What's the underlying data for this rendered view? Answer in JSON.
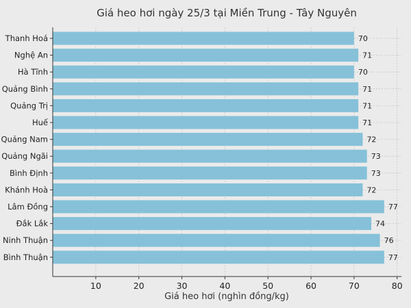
{
  "chart_data": {
    "type": "bar",
    "orientation": "horizontal",
    "title": "Giá heo hơi ngày 25/3 tại Miền Trung - Tây Nguyên",
    "xlabel": "Giá heo hơi (nghìn đồng/kg)",
    "ylabel": "",
    "categories": [
      "Thanh Hoá",
      "Nghệ An",
      "Hà Tĩnh",
      "Quảng Bình",
      "Quảng Trị",
      "Huế",
      "Quảng Nam",
      "Quảng Ngãi",
      "Bình Định",
      "Khánh Hoà",
      "Lâm Đồng",
      "Đắk Lắk",
      "Ninh Thuận",
      "Bình Thuận"
    ],
    "values": [
      70,
      71,
      70,
      71,
      71,
      71,
      72,
      73,
      73,
      72,
      77,
      74,
      76,
      77
    ],
    "xlim": [
      0,
      81
    ],
    "xticks": [
      "10",
      "20",
      "30",
      "40",
      "50",
      "60",
      "70",
      "80"
    ],
    "grid": true,
    "bar_color": "#86c1d9",
    "background": "#ebebeb"
  }
}
